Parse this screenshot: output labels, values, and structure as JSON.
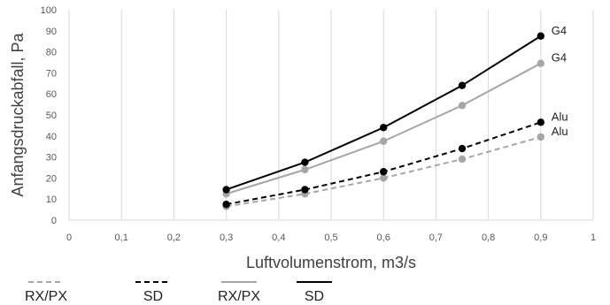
{
  "chart_data": {
    "type": "line",
    "xlabel": "Luftvolumenstrom, m3/s",
    "ylabel": "Anfangsdruckabfall, Pa",
    "xlim": [
      0,
      1
    ],
    "ylim": [
      0,
      100
    ],
    "x_ticks": [
      "0",
      "0,1",
      "0,2",
      "0,3",
      "0,4",
      "0,5",
      "0,6",
      "0,7",
      "0,8",
      "0,9",
      "1"
    ],
    "y_ticks": [
      "0",
      "10",
      "20",
      "30",
      "40",
      "50",
      "60",
      "70",
      "80",
      "90",
      "100"
    ],
    "grid": "vertical",
    "legend_position": "bottom",
    "series": [
      {
        "name": "RX/PX",
        "color": "#a6a6a6",
        "dash": "dashed",
        "x": [
          0.3,
          0.45,
          0.6,
          0.75,
          0.9
        ],
        "y": [
          6.5,
          12.5,
          20,
          29,
          39.5
        ],
        "end_label": "Alu"
      },
      {
        "name": "SD",
        "color": "#000000",
        "dash": "dashed",
        "x": [
          0.3,
          0.45,
          0.6,
          0.75,
          0.9
        ],
        "y": [
          7.5,
          14.5,
          23,
          34,
          46.5
        ],
        "end_label": "Alu"
      },
      {
        "name": "RX/PX",
        "color": "#a6a6a6",
        "dash": "solid",
        "x": [
          0.3,
          0.45,
          0.6,
          0.75,
          0.9
        ],
        "y": [
          12.5,
          24,
          37.5,
          54.5,
          74.5
        ],
        "end_label": "G4"
      },
      {
        "name": "SD",
        "color": "#000000",
        "dash": "solid",
        "x": [
          0.3,
          0.45,
          0.6,
          0.75,
          0.9
        ],
        "y": [
          14.5,
          27.5,
          44,
          64,
          87.5
        ],
        "end_label": "G4"
      }
    ]
  }
}
